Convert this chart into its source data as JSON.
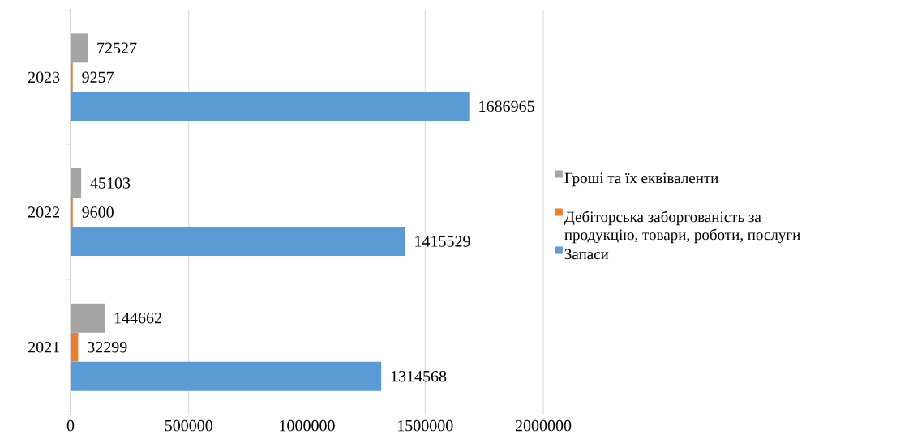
{
  "chart_data": {
    "type": "bar",
    "orientation": "horizontal",
    "categories": [
      "2023",
      "2022",
      "2021"
    ],
    "series": [
      {
        "name": "Запаси",
        "color": "#5b9bd5",
        "values": [
          1686965,
          1415529,
          1314568
        ]
      },
      {
        "name": "Дебіторська заборгованість за продукцію, товари, роботи, послуги",
        "color": "#ed7d31",
        "values": [
          9257,
          9600,
          32299
        ]
      },
      {
        "name": "Гроші та їх еквіваленти",
        "color": "#a5a5a5",
        "values": [
          72527,
          45103,
          144662
        ]
      }
    ],
    "xlim": [
      0,
      2000000
    ],
    "xticks": [
      0,
      500000,
      1000000,
      1500000,
      2000000
    ],
    "grid": "x",
    "legend": "right",
    "data_labels": true
  }
}
